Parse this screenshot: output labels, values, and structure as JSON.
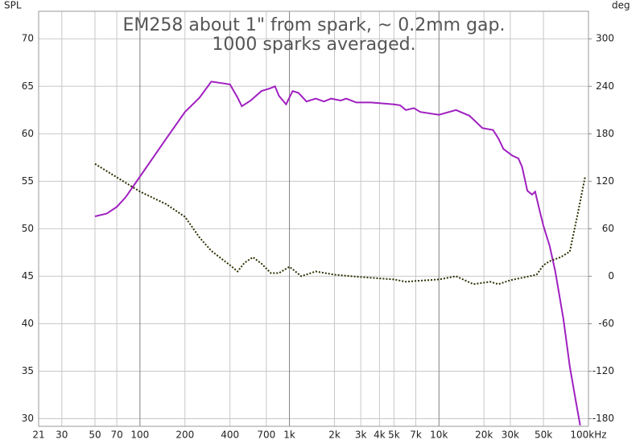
{
  "chart_data": {
    "type": "line",
    "title": [
      "EM258 about 1\" from spark, ~ 0.2mm gap.",
      "1000 sparks averaged."
    ],
    "ylabel": "SPL",
    "y2label": "deg",
    "xscale": "log",
    "grid": true,
    "xlim": [
      21,
      100000
    ],
    "ylim": [
      29.2,
      72.9
    ],
    "y2lim": [
      -189.6,
      334.8
    ],
    "xticks": [
      21,
      30,
      50,
      70,
      100,
      200,
      400,
      700,
      {
        "value": 1000,
        "label": "1k"
      },
      {
        "value": 2000,
        "label": "2k"
      },
      {
        "value": 3000,
        "label": "3k"
      },
      {
        "value": 4000,
        "label": "4k"
      },
      {
        "value": 5000,
        "label": "5k"
      },
      {
        "value": 7000,
        "label": "7k"
      },
      {
        "value": 10000,
        "label": "10k"
      },
      {
        "value": 20000,
        "label": "20k"
      },
      {
        "value": 30000,
        "label": "30k"
      },
      {
        "value": 50000,
        "label": "50k"
      },
      {
        "value": 100000,
        "label": "100kHz"
      }
    ],
    "yticks": [
      30,
      35,
      40,
      45,
      50,
      55,
      60,
      65,
      70
    ],
    "y2ticks": [
      -180,
      -120,
      -60,
      0,
      60,
      120,
      180,
      240,
      300
    ],
    "series": [
      {
        "name": "SPL",
        "color": "#a020c0",
        "x": [
          50,
          60,
          70,
          80,
          100,
          150,
          200,
          250,
          300,
          400,
          450,
          480,
          550,
          650,
          750,
          800,
          850,
          950,
          1050,
          1150,
          1300,
          1500,
          1700,
          1900,
          2200,
          2400,
          2800,
          3500,
          5000,
          5500,
          6000,
          6800,
          7500,
          10000,
          13000,
          16000,
          19500,
          23000,
          25000,
          27000,
          31000,
          34000,
          36000,
          39000,
          42000,
          44000,
          47000,
          50000,
          55000,
          60000,
          68000,
          75000,
          82000,
          88000
        ],
        "values": [
          51.3,
          51.6,
          52.3,
          53.3,
          55.5,
          59.5,
          62.3,
          63.8,
          65.5,
          65.2,
          63.8,
          62.9,
          63.5,
          64.5,
          64.8,
          65.0,
          64.0,
          63.1,
          64.5,
          64.3,
          63.4,
          63.7,
          63.4,
          63.7,
          63.5,
          63.7,
          63.3,
          63.3,
          63.1,
          63.0,
          62.5,
          62.7,
          62.3,
          62.0,
          62.5,
          61.9,
          60.6,
          60.4,
          59.5,
          58.4,
          57.7,
          57.4,
          56.5,
          54.0,
          53.6,
          53.9,
          52.0,
          50.3,
          48.2,
          45.5,
          40.5,
          35.5,
          32.0,
          29.3
        ]
      },
      {
        "name": "Phase",
        "color": "#2e2e00",
        "axis": "y2",
        "x": [
          50,
          100,
          150,
          200,
          250,
          300,
          400,
          450,
          500,
          570,
          650,
          750,
          850,
          1000,
          1200,
          1500,
          2000,
          3000,
          5000,
          6000,
          7000,
          10000,
          13000,
          17000,
          22000,
          25000,
          30000,
          38000,
          45000,
          50000,
          55000,
          65000,
          75000,
          85000,
          95000
        ],
        "values": [
          142,
          107,
          91,
          75,
          49,
          32,
          14,
          6,
          17,
          24,
          16,
          4,
          4,
          12,
          0,
          6,
          2,
          -1,
          -4,
          -7,
          -6,
          -4,
          0,
          -10,
          -7,
          -10,
          -5,
          -1,
          2,
          14,
          19,
          24,
          31,
          80,
          126
        ]
      }
    ]
  }
}
